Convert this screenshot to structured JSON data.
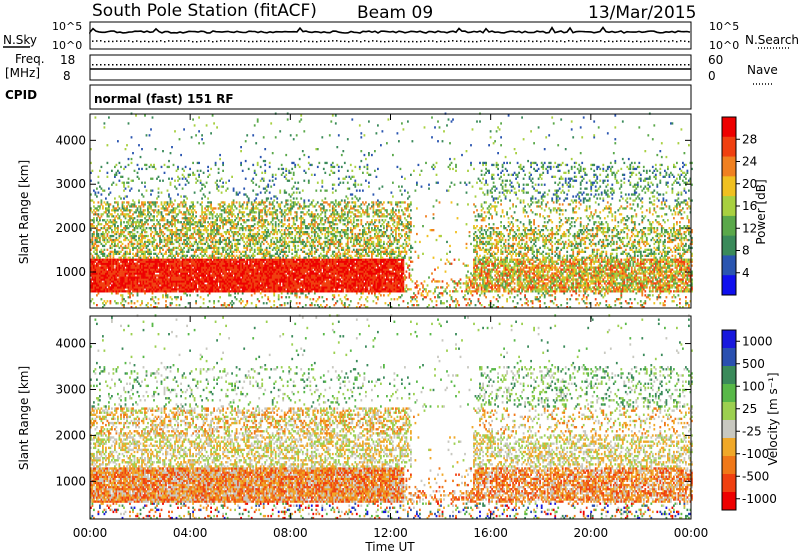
{
  "header": {
    "station": "South Pole Station (fitACF)",
    "beam": "Beam 09",
    "date": "13/Mar/2015"
  },
  "top_panels": {
    "nsky_label": "N.Sky",
    "nsearch_label": "N.Search",
    "nsky_ticks": [
      "10^5",
      "10^0"
    ],
    "nsearch_ticks": [
      "10^5",
      "10^0"
    ],
    "freq_label_1": "Freq.",
    "freq_label_2": "[MHz]",
    "freq_ticks": [
      "18",
      "8"
    ],
    "nave_label": "Nave",
    "nave_ticks": [
      "60",
      "0"
    ],
    "cpid_label": "CPID",
    "cpid_value": "normal (fast) 151 RF"
  },
  "colors": {
    "power_scale": [
      "#1010ee",
      "#2a55b0",
      "#3a8a5a",
      "#5aa84a",
      "#a8d040",
      "#f0c020",
      "#f08020",
      "#f04010",
      "#ee0000"
    ],
    "velocity_scale": [
      "#ee0000",
      "#f04010",
      "#f07818",
      "#f0a828",
      "#c8c8c0",
      "#9cd050",
      "#58b848",
      "#3a8a5a",
      "#2a50b0",
      "#1818dd"
    ]
  },
  "chart_data": [
    {
      "type": "heatmap",
      "name": "power",
      "xlabel": "",
      "ylabel": "Slant Range [km]",
      "x_ticks": [
        "00:00",
        "04:00",
        "08:00",
        "12:00",
        "16:00",
        "20:00",
        "00:00"
      ],
      "xlim": [
        0,
        24
      ],
      "y_ticks": [
        1000,
        2000,
        3000,
        4000
      ],
      "ylim": [
        180,
        4600
      ],
      "colorbar_label": "Power [dB]",
      "colorbar_ticks": [
        "4",
        "8",
        "12",
        "16",
        "20",
        "24",
        "28"
      ],
      "colorbar_range": [
        0,
        30
      ]
    },
    {
      "type": "heatmap",
      "name": "velocity",
      "xlabel": "Time UT",
      "ylabel": "Slant Range [km]",
      "x_ticks": [
        "00:00",
        "04:00",
        "08:00",
        "12:00",
        "16:00",
        "20:00",
        "00:00"
      ],
      "xlim": [
        0,
        24
      ],
      "y_ticks": [
        1000,
        2000,
        3000,
        4000
      ],
      "ylim": [
        180,
        4600
      ],
      "colorbar_label": "Velocity [m s⁻¹]",
      "colorbar_ticks": [
        "1000",
        "500",
        "100",
        "25",
        "-25",
        "-100",
        "-500",
        "-1000"
      ]
    }
  ]
}
